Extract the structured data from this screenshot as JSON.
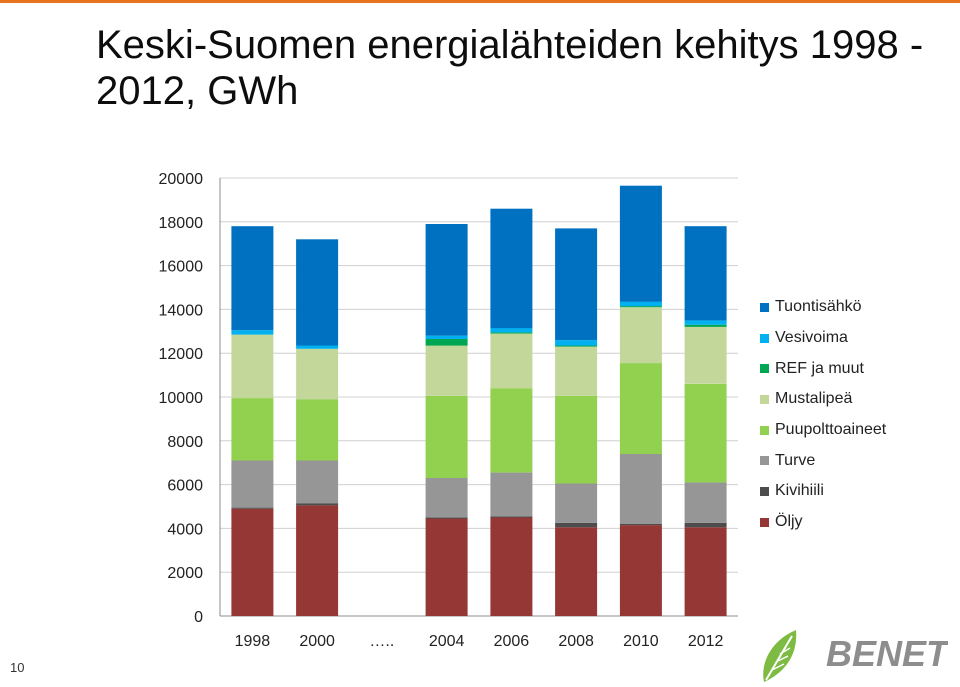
{
  "title": "Keski-Suomen energialähteiden kehitys 1998 - 2012, GWh",
  "page_number": "10",
  "logo": {
    "text": "BENET"
  },
  "colors": {
    "title_rule": "#e8731e",
    "logo_green": "#7dbb42",
    "logo_gray": "#8d8d8d"
  },
  "chart_data": {
    "type": "bar",
    "stacked": true,
    "title": "",
    "xlabel": "",
    "ylabel": "",
    "ylim": [
      0,
      20000
    ],
    "yticks": [
      "0",
      "2000",
      "4000",
      "6000",
      "8000",
      "10000",
      "12000",
      "14000",
      "16000",
      "18000",
      "20000"
    ],
    "grid": true,
    "legend_position": "right",
    "categories": [
      "1998",
      "2000",
      "…..",
      "2004",
      "2006",
      "2008",
      "2010",
      "2012"
    ],
    "series": [
      {
        "name": "Öljy",
        "color": "#953735",
        "values": [
          4900,
          5050,
          null,
          4450,
          4500,
          4050,
          4150,
          4050
        ]
      },
      {
        "name": "Kivihiili",
        "color": "#4d4d4d",
        "values": [
          50,
          100,
          null,
          50,
          50,
          200,
          50,
          200
        ]
      },
      {
        "name": "Turve",
        "color": "#969696",
        "values": [
          2150,
          1950,
          null,
          1800,
          2000,
          1800,
          3200,
          1850
        ]
      },
      {
        "name": "Puupolttoaineet",
        "color": "#92d050",
        "values": [
          2850,
          2800,
          null,
          3750,
          3850,
          4000,
          4150,
          4500
        ]
      },
      {
        "name": "Mustalipeä",
        "color": "#c4d79b",
        "values": [
          2900,
          2300,
          null,
          2300,
          2500,
          2250,
          2550,
          2600
        ]
      },
      {
        "name": "REF ja muut",
        "color": "#00a651",
        "values": [
          0,
          0,
          null,
          300,
          50,
          50,
          50,
          100
        ]
      },
      {
        "name": "Vesivoima",
        "color": "#00b0f0",
        "values": [
          200,
          150,
          null,
          150,
          200,
          250,
          200,
          200
        ]
      },
      {
        "name": "Tuontisähkö",
        "color": "#0070c0",
        "values": [
          4750,
          4850,
          null,
          5100,
          5450,
          5100,
          5300,
          4300
        ]
      }
    ]
  }
}
